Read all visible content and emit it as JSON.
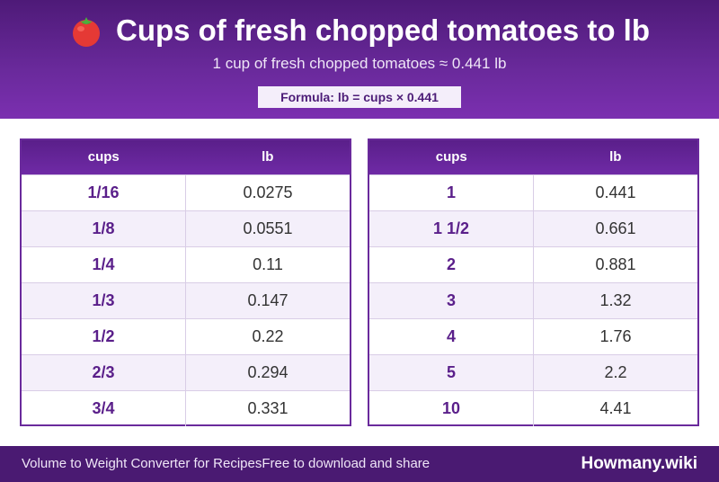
{
  "header": {
    "icon": "tomato-icon",
    "title": "Cups of fresh chopped tomatoes to lb",
    "subtitle": "1 cup of fresh chopped tomatoes ≈ 0.441 lb",
    "formula": "Formula: lb = cups × 0.441"
  },
  "tables": [
    {
      "headers": [
        "cups",
        "lb"
      ],
      "rows": [
        [
          "1/16",
          "0.0275"
        ],
        [
          "1/8",
          "0.0551"
        ],
        [
          "1/4",
          "0.11"
        ],
        [
          "1/3",
          "0.147"
        ],
        [
          "1/2",
          "0.22"
        ],
        [
          "2/3",
          "0.294"
        ],
        [
          "3/4",
          "0.331"
        ]
      ]
    },
    {
      "headers": [
        "cups",
        "lb"
      ],
      "rows": [
        [
          "1",
          "0.441"
        ],
        [
          "1 1/2",
          "0.661"
        ],
        [
          "2",
          "0.881"
        ],
        [
          "3",
          "1.32"
        ],
        [
          "4",
          "1.76"
        ],
        [
          "5",
          "2.2"
        ],
        [
          "10",
          "4.41"
        ]
      ]
    }
  ],
  "footer": {
    "left_text": "Volume to Weight Converter for Recipes",
    "left_sub": "Free to download and share",
    "brand": "Howmany.wiki"
  },
  "colors": {
    "header_bg": "#6a2a9c",
    "accent": "#5a1f8a",
    "alt_row": "#f4effa",
    "footer_bg": "#4a1a72"
  }
}
